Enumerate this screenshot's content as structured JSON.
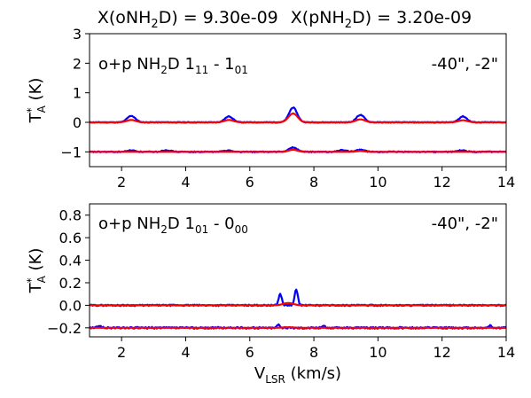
{
  "title": {
    "o_prefix": "X(oNH",
    "o_sub": "2",
    "o_suffix": "D) = 9.30e-09",
    "p_prefix": "X(pNH",
    "p_sub": "2",
    "p_suffix": "D) = 3.20e-09"
  },
  "colors": {
    "observed": "#0000ff",
    "model": "#ff0000",
    "axes": "#000000",
    "background": "#ffffff"
  },
  "chart_data": [
    {
      "type": "line",
      "label": {
        "prefix": "o+p NH",
        "sub": "2",
        "mid": "D 1",
        "sub1": "11",
        "dash": " - 1",
        "sub2": "01"
      },
      "offset": "-40\", -2\"",
      "ylabel": {
        "base": "T",
        "sup": "*",
        "sub": "A",
        "units": " (K)"
      },
      "xlabel": "",
      "xlim": [
        1,
        14
      ],
      "ylim": [
        -1.5,
        3
      ],
      "xticks": [
        2,
        4,
        6,
        8,
        10,
        12,
        14
      ],
      "yticks": [
        -1,
        0,
        1,
        2,
        3
      ],
      "grid": false,
      "series_baselines": [
        0,
        -1
      ],
      "observed_peaks": [
        {
          "x": 2.3,
          "y": 0.22
        },
        {
          "x": 5.35,
          "y": 0.2
        },
        {
          "x": 7.35,
          "y": 0.5
        },
        {
          "x": 9.45,
          "y": 0.25
        },
        {
          "x": 12.65,
          "y": 0.2
        }
      ],
      "model_peaks": [
        {
          "x": 2.3,
          "y": 0.08
        },
        {
          "x": 5.35,
          "y": 0.08
        },
        {
          "x": 7.35,
          "y": 0.3
        },
        {
          "x": 9.45,
          "y": 0.1
        },
        {
          "x": 12.65,
          "y": 0.07
        }
      ],
      "observed_lower_peaks": [
        {
          "x": 2.3,
          "y": -0.95
        },
        {
          "x": 3.4,
          "y": -0.94
        },
        {
          "x": 5.3,
          "y": -0.95
        },
        {
          "x": 7.35,
          "y": -0.85
        },
        {
          "x": 8.9,
          "y": -0.94
        },
        {
          "x": 9.45,
          "y": -0.93
        },
        {
          "x": 12.6,
          "y": -0.95
        }
      ],
      "model_lower_peaks": [
        {
          "x": 7.35,
          "y": -0.93
        },
        {
          "x": 9.45,
          "y": -0.97
        }
      ]
    },
    {
      "type": "line",
      "label": {
        "prefix": "o+p NH",
        "sub": "2",
        "mid": "D 1",
        "sub1": "01",
        "dash": " - 0",
        "sub2": "00"
      },
      "offset": "-40\", -2\"",
      "ylabel": {
        "base": "T",
        "sup": "*",
        "sub": "A",
        "units": " (K)"
      },
      "xlabel": {
        "base": "V",
        "sub": "LSR",
        "units": " (km/s)"
      },
      "xlim": [
        1,
        14
      ],
      "ylim": [
        -0.28,
        0.9
      ],
      "xticks": [
        2,
        4,
        6,
        8,
        10,
        12,
        14
      ],
      "yticks": [
        -0.2,
        0.0,
        0.2,
        0.4,
        0.6,
        0.8
      ],
      "ytick_labels": [
        "−0.2",
        "0.0",
        "0.2",
        "0.4",
        "0.6",
        "0.8"
      ],
      "grid": false,
      "series_baselines": [
        0,
        -0.2
      ],
      "observed_peaks": [
        {
          "x": 6.95,
          "y": 0.1
        },
        {
          "x": 7.45,
          "y": 0.14
        }
      ],
      "model_peaks": [
        {
          "x": 7.2,
          "y": 0.02
        }
      ],
      "observed_lower_peaks": [
        {
          "x": 1.3,
          "y": -0.18
        },
        {
          "x": 6.9,
          "y": -0.17
        },
        {
          "x": 8.3,
          "y": -0.18
        },
        {
          "x": 13.5,
          "y": -0.18
        }
      ],
      "model_lower_peaks": [
        {
          "x": 7.2,
          "y": -0.195
        }
      ]
    }
  ]
}
